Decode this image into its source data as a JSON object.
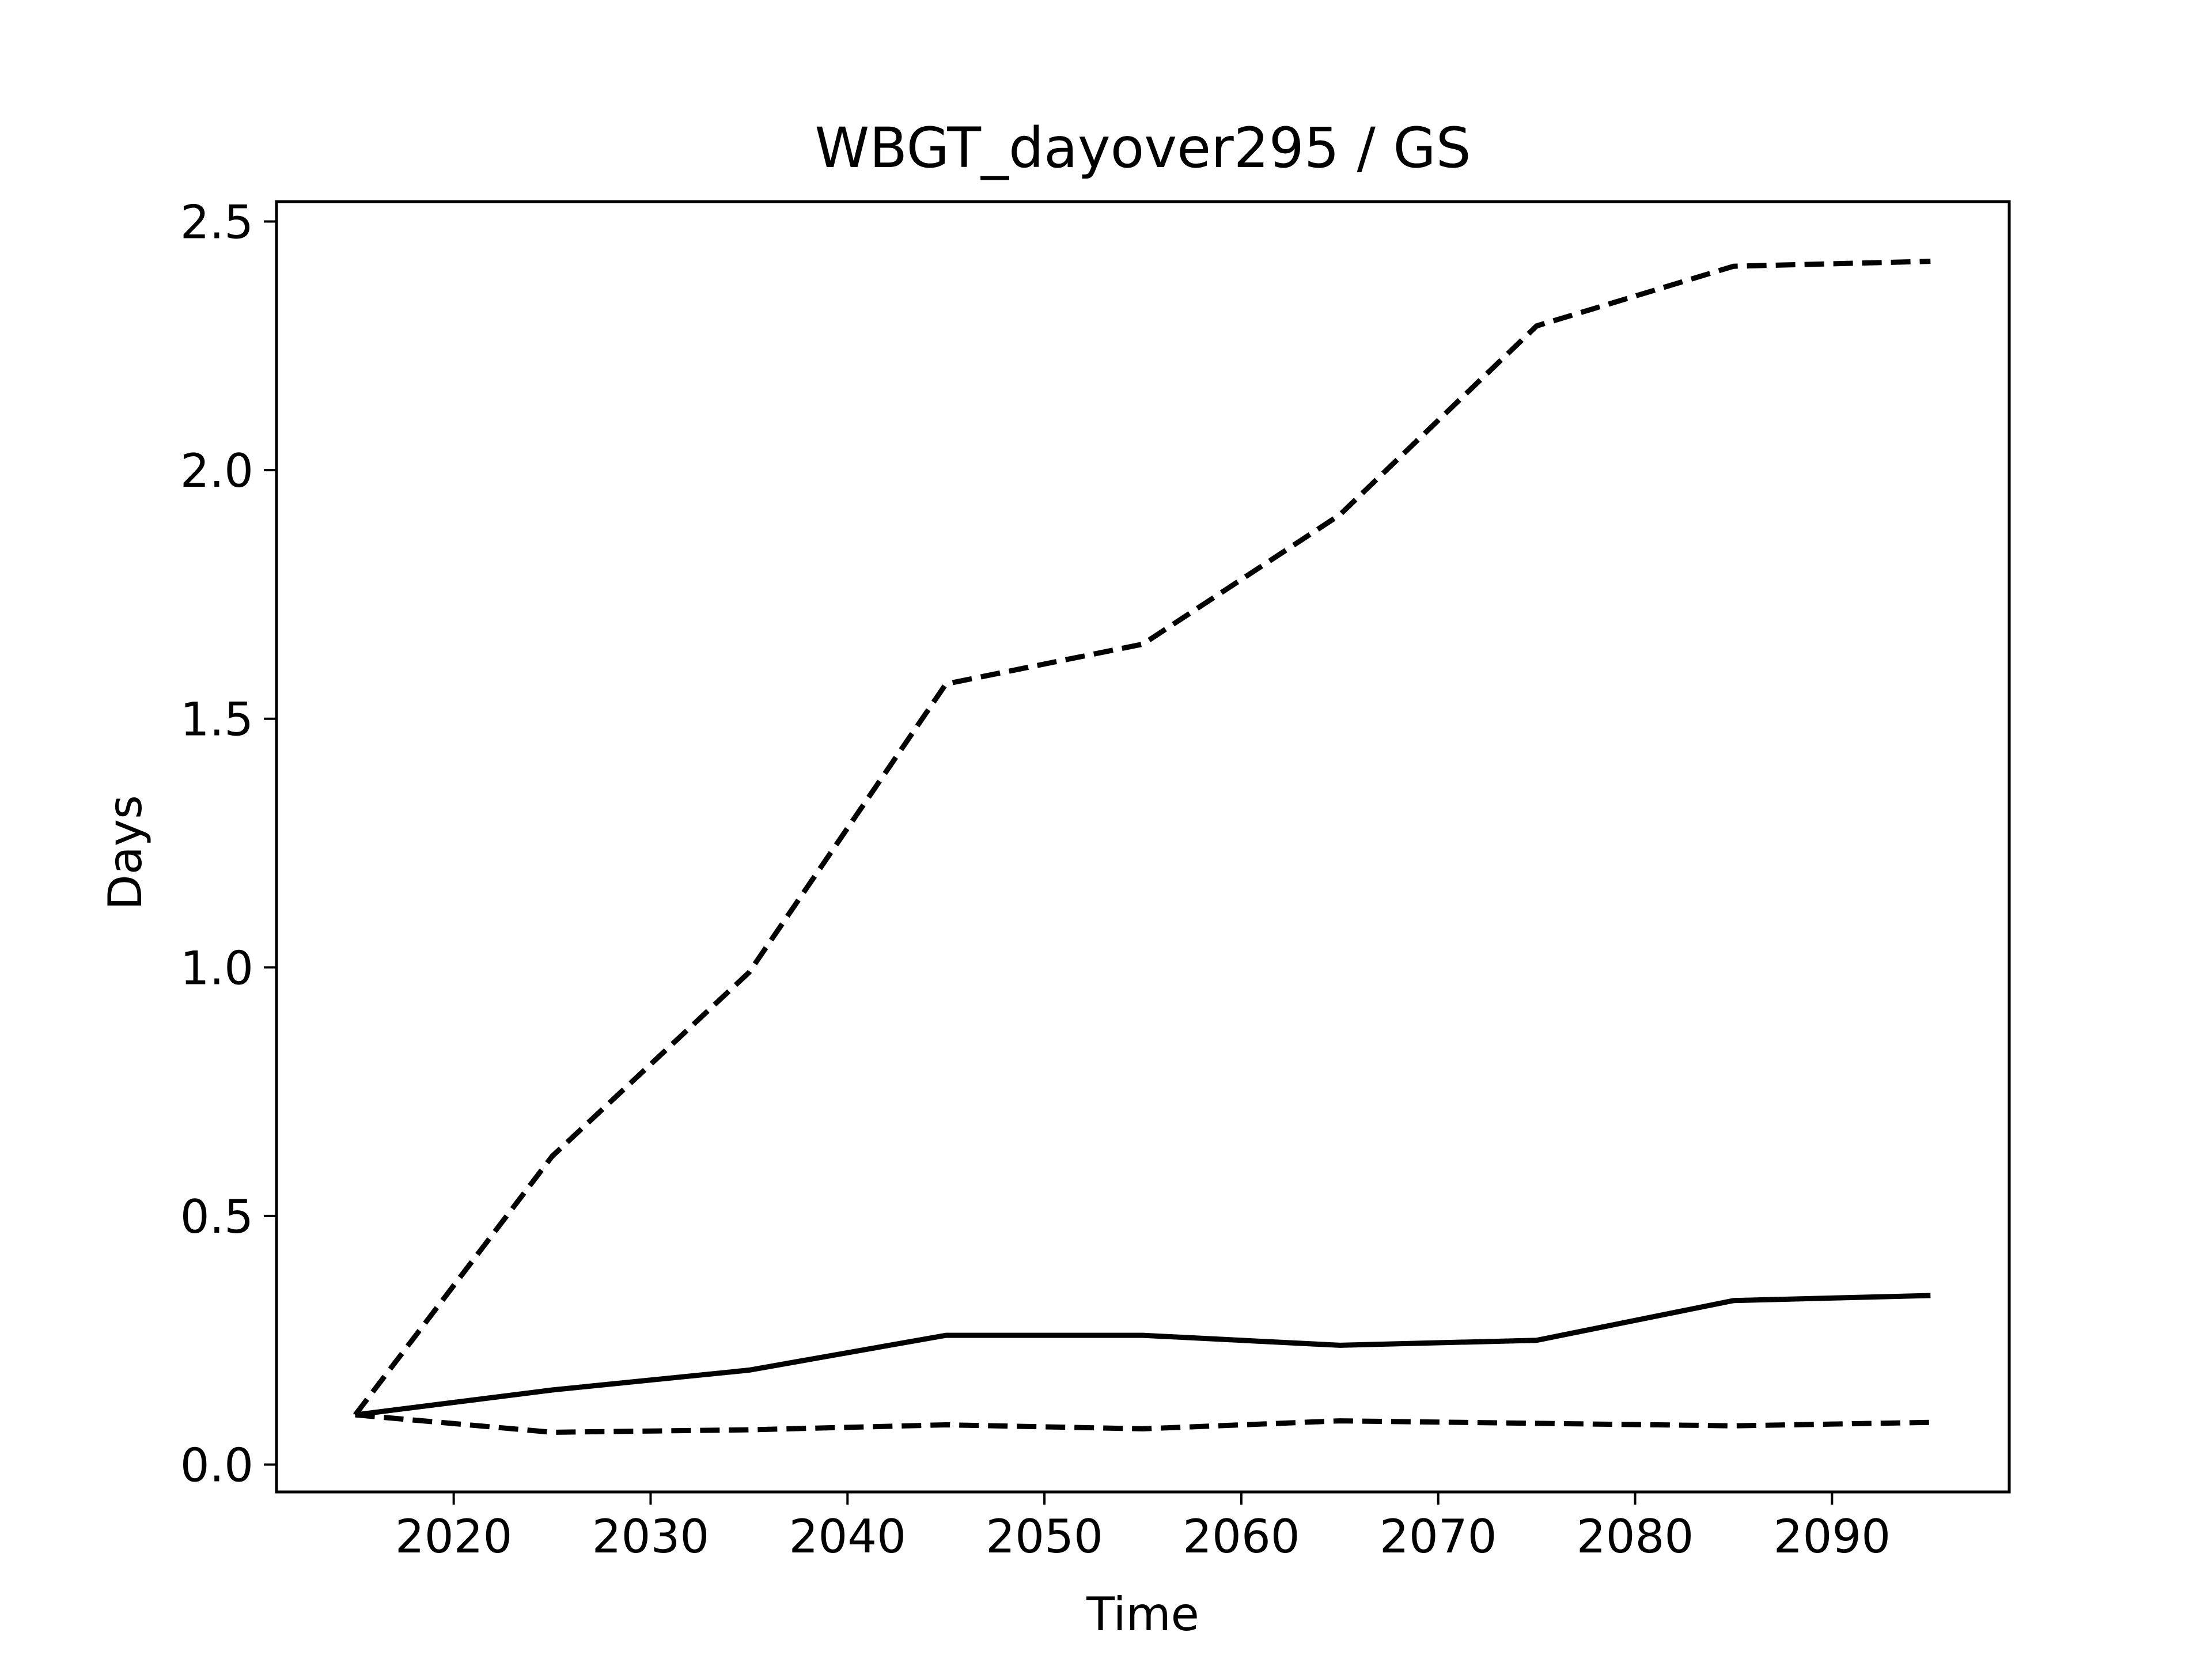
{
  "chart_data": {
    "type": "line",
    "title": "WBGT_dayover295 / GS",
    "xlabel": "Time",
    "ylabel": "Days",
    "xlim": [
      2011,
      2099
    ],
    "ylim": [
      -0.055,
      2.54
    ],
    "xticks": [
      2020,
      2030,
      2040,
      2050,
      2060,
      2070,
      2080,
      2090
    ],
    "xtick_labels": [
      "2020",
      "2030",
      "2040",
      "2050",
      "2060",
      "2070",
      "2080",
      "2090"
    ],
    "yticks": [
      0.0,
      0.5,
      1.0,
      1.5,
      2.0,
      2.5
    ],
    "ytick_labels": [
      "0.0",
      "0.5",
      "1.0",
      "1.5",
      "2.0",
      "2.5"
    ],
    "grid": false,
    "x": [
      2015,
      2025,
      2035,
      2045,
      2055,
      2065,
      2075,
      2085,
      2095
    ],
    "series": [
      {
        "style": "solid",
        "color": "#000000",
        "values": [
          0.1,
          0.15,
          0.19,
          0.26,
          0.26,
          0.24,
          0.25,
          0.33,
          0.34
        ]
      },
      {
        "style": "dashed",
        "color": "#000000",
        "values": [
          0.1,
          0.62,
          0.99,
          1.57,
          1.65,
          1.91,
          2.29,
          2.41,
          2.42
        ]
      },
      {
        "style": "dashed",
        "color": "#000000",
        "values": [
          0.1,
          0.065,
          0.07,
          0.08,
          0.072,
          0.088,
          0.083,
          0.078,
          0.085
        ]
      }
    ]
  }
}
